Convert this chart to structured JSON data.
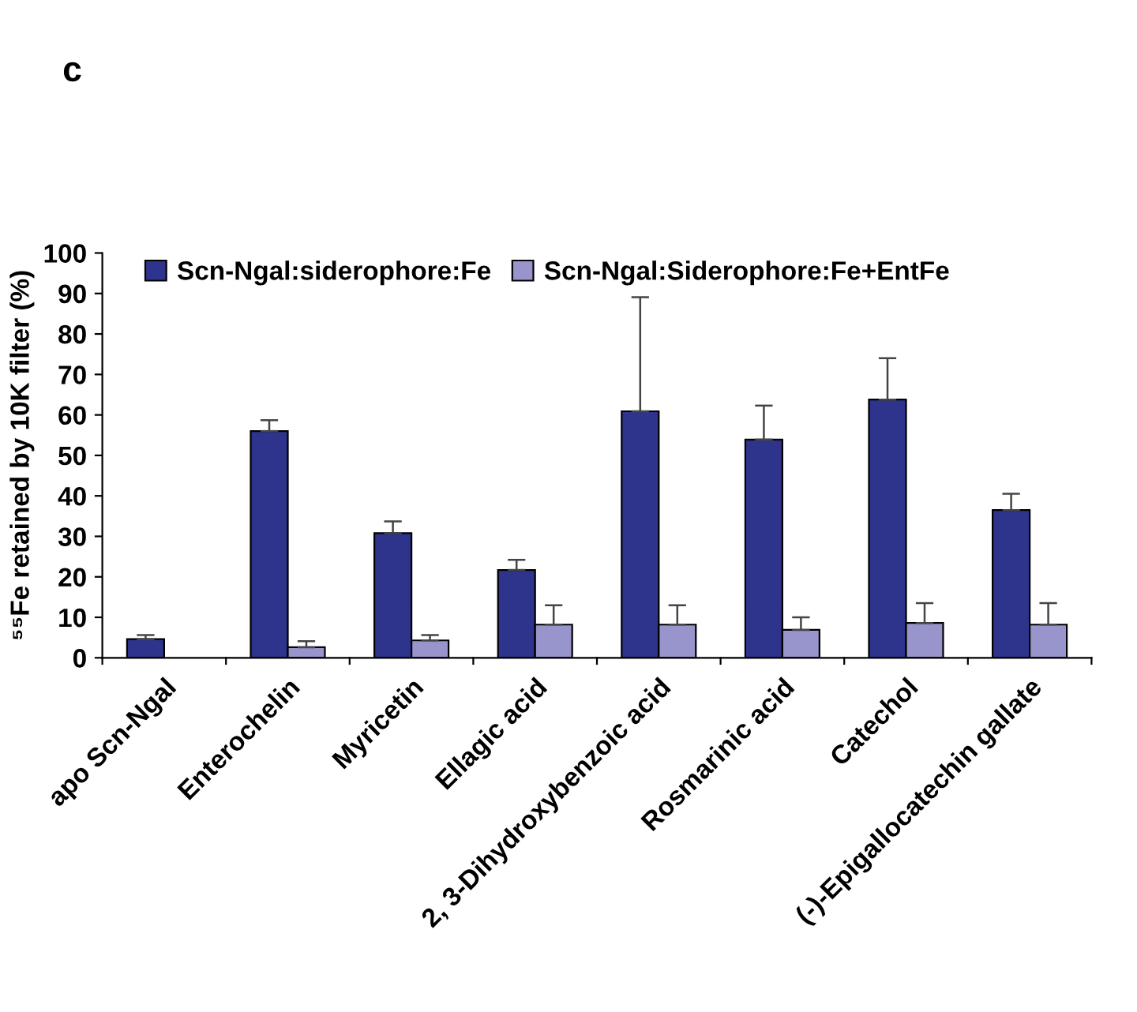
{
  "chart_data": {
    "type": "bar",
    "ylabel": "⁵⁵Fe retained by 10K filter (%)",
    "annotations": [
      "c"
    ],
    "categories": [
      "apo Scn-Ngal",
      "Enterochelin",
      "Myricetin",
      "Ellagic acid",
      "2, 3-Dihydroxybenzoic acid",
      "Rosmarinic acid",
      "Catechol",
      "(-)-Epigallocatechin gallate"
    ],
    "series": [
      {
        "name": "Scn-Ngal:siderophore:Fe",
        "color": "#2e348c",
        "values": [
          4.6,
          56,
          30.8,
          21.7,
          60.9,
          53.9,
          63.8,
          36.5
        ],
        "errors": [
          [
            4.6,
            5.6
          ],
          [
            56,
            58.7
          ],
          [
            30.8,
            33.7
          ],
          [
            21.7,
            24.2
          ],
          [
            60.9,
            89.1
          ],
          [
            53.9,
            62.3
          ],
          [
            63.8,
            74
          ],
          [
            36.5,
            40.5
          ]
        ]
      },
      {
        "name": "Scn-Ngal:Siderophore:Fe+EntFe",
        "color": "#9894cc",
        "values": [
          null,
          2.6,
          4.3,
          8.2,
          8.2,
          6.9,
          8.6,
          8.2
        ],
        "errors": [
          null,
          [
            2.6,
            4.1
          ],
          [
            4.3,
            5.6
          ],
          [
            8.2,
            13
          ],
          [
            8.2,
            13
          ],
          [
            6.9,
            10
          ],
          [
            8.6,
            13.5
          ],
          [
            8.2,
            13.5
          ]
        ]
      }
    ],
    "ylim": [
      0,
      100
    ],
    "yticks": [
      0,
      10,
      20,
      30,
      40,
      50,
      60,
      70,
      80,
      90,
      100
    ],
    "grid": false,
    "legend": "top"
  }
}
